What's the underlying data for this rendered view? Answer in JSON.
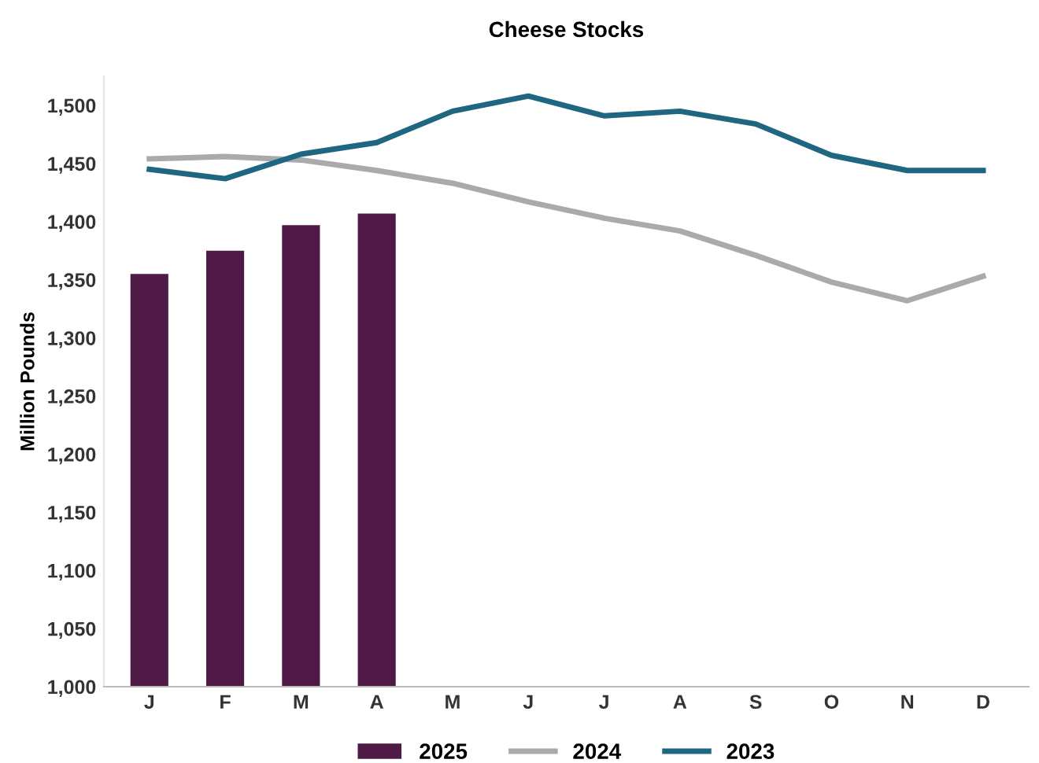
{
  "chart_data": {
    "type": "bar",
    "title": "Cheese Stocks",
    "ylabel": "Million Pounds",
    "categories": [
      "J",
      "F",
      "M",
      "A",
      "M",
      "J",
      "J",
      "A",
      "S",
      "O",
      "N",
      "D"
    ],
    "series": [
      {
        "name": "2025",
        "color": "#4f1a45",
        "values": [
          1355,
          1375,
          1397,
          1407,
          null,
          null,
          null,
          null,
          null,
          null,
          null,
          null
        ]
      },
      {
        "name": "2024",
        "type": "line",
        "color": "#aaaaaa",
        "values": [
          1454,
          1456,
          1453,
          1444,
          1433,
          1417,
          1403,
          1392,
          1371,
          1348,
          1332,
          1353
        ]
      },
      {
        "name": "2023",
        "type": "line",
        "color": "#1f6680",
        "values": [
          1445,
          1437,
          1458,
          1468,
          1495,
          1508,
          1491,
          1495,
          1484,
          1457,
          1444,
          1444
        ]
      }
    ],
    "ylim": [
      1000,
      1525
    ],
    "yticks": [
      {
        "value": 1000,
        "label": "1,000"
      },
      {
        "value": 1050,
        "label": "1,050"
      },
      {
        "value": 1100,
        "label": "1,100"
      },
      {
        "value": 1150,
        "label": "1,150"
      },
      {
        "value": 1200,
        "label": "1,200"
      },
      {
        "value": 1250,
        "label": "1,250"
      },
      {
        "value": 1300,
        "label": "1,300"
      },
      {
        "value": 1350,
        "label": "1,350"
      },
      {
        "value": 1400,
        "label": "1,400"
      },
      {
        "value": 1450,
        "label": "1,450"
      },
      {
        "value": 1500,
        "label": "1,500"
      }
    ],
    "grid": false,
    "legend": "bottom"
  }
}
